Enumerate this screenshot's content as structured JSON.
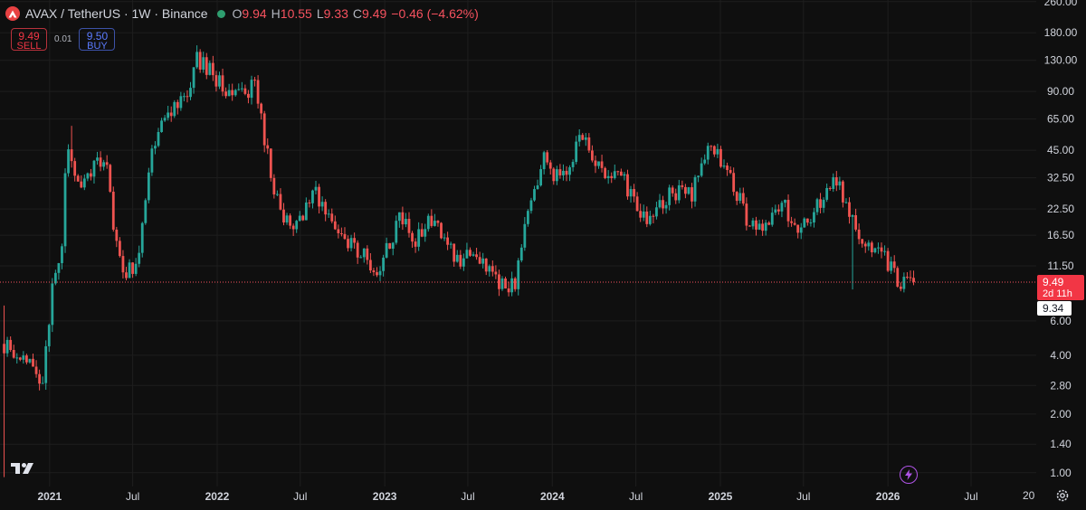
{
  "header": {
    "title": "AVAX / TetherUS · 1W · Binance",
    "open_label": "O",
    "open": "9.94",
    "high_label": "H",
    "high": "10.55",
    "low_label": "L",
    "low": "9.33",
    "close_label": "C",
    "close": "9.49",
    "change": "−0.46 (−4.62%)"
  },
  "trade": {
    "sell_price": "9.49",
    "sell_label": "SELL",
    "spread": "0.01",
    "buy_price": "9.50",
    "buy_label": "BUY"
  },
  "footer": {
    "timezone_label": "20"
  },
  "colors": {
    "up": "#26a69a",
    "down": "#ef5350",
    "background": "#0f0f0f",
    "grid": "#1e1e1e",
    "price_line": "#f7525f"
  },
  "icons": [
    "avax-logo-icon",
    "market-status-dot-icon",
    "tradingview-logo-icon",
    "lightning-icon",
    "gear-icon"
  ],
  "chart_data": {
    "type": "candlestick",
    "scale": "log",
    "ylim": [
      0.85,
      265
    ],
    "xlim": [
      "2020-09-15",
      "2026-11-20"
    ],
    "y_ticks": [
      "1.00",
      "1.40",
      "2.00",
      "2.80",
      "4.00",
      "6.00",
      "11.50",
      "16.50",
      "22.50",
      "32.50",
      "45.00",
      "65.00",
      "90.00",
      "130.00",
      "180.00",
      "260.00"
    ],
    "x_ticks": [
      {
        "date": "2021-01-01",
        "label": "2021"
      },
      {
        "date": "2021-07-01",
        "label": "Jul"
      },
      {
        "date": "2022-01-01",
        "label": "2022"
      },
      {
        "date": "2022-07-01",
        "label": "Jul"
      },
      {
        "date": "2023-01-01",
        "label": "2023"
      },
      {
        "date": "2023-07-01",
        "label": "Jul"
      },
      {
        "date": "2024-01-01",
        "label": "2024"
      },
      {
        "date": "2024-07-01",
        "label": "Jul"
      },
      {
        "date": "2025-01-01",
        "label": "2025"
      },
      {
        "date": "2025-07-01",
        "label": "Jul"
      },
      {
        "date": "2026-01-01",
        "label": "2026"
      },
      {
        "date": "2026-07-01",
        "label": "Jul"
      }
    ],
    "current_price": 9.49,
    "current_price_label": "9.49",
    "countdown_label": "2d 11h",
    "crosshair_price": 9.34,
    "crosshair_label": "9.34",
    "price_path": [
      [
        "2020-09-21",
        1.0
      ],
      [
        "2020-09-28",
        4.6
      ],
      [
        "2020-10-26",
        4.0
      ],
      [
        "2020-11-23",
        3.6
      ],
      [
        "2020-12-21",
        3.0
      ],
      [
        "2021-01-11",
        8.5
      ],
      [
        "2021-02-01",
        13.5
      ],
      [
        "2021-02-10",
        52.0
      ],
      [
        "2021-03-01",
        30.0
      ],
      [
        "2021-04-01",
        35.0
      ],
      [
        "2021-05-10",
        40.0
      ],
      [
        "2021-05-24",
        16.0
      ],
      [
        "2021-06-21",
        10.5
      ],
      [
        "2021-07-19",
        13.0
      ],
      [
        "2021-08-16",
        48.0
      ],
      [
        "2021-09-20",
        70.0
      ],
      [
        "2021-10-25",
        85.0
      ],
      [
        "2021-11-22",
        130.0
      ],
      [
        "2021-12-27",
        110.0
      ],
      [
        "2022-02-07",
        85.0
      ],
      [
        "2022-03-28",
        95.0
      ],
      [
        "2022-05-09",
        30.0
      ],
      [
        "2022-06-13",
        17.0
      ],
      [
        "2022-08-08",
        27.0
      ],
      [
        "2022-09-26",
        17.0
      ],
      [
        "2022-11-07",
        14.0
      ],
      [
        "2022-12-26",
        11.0
      ],
      [
        "2023-02-06",
        21.0
      ],
      [
        "2023-03-13",
        16.0
      ],
      [
        "2023-04-17",
        19.5
      ],
      [
        "2023-06-12",
        12.0
      ],
      [
        "2023-07-17",
        13.5
      ],
      [
        "2023-09-11",
        9.0
      ],
      [
        "2023-10-16",
        9.5
      ],
      [
        "2023-11-13",
        22.0
      ],
      [
        "2023-12-18",
        41.0
      ],
      [
        "2024-01-22",
        31.0
      ],
      [
        "2024-03-11",
        55.0
      ],
      [
        "2024-04-15",
        36.0
      ],
      [
        "2024-06-10",
        31.0
      ],
      [
        "2024-07-29",
        19.0
      ],
      [
        "2024-09-23",
        28.0
      ],
      [
        "2024-11-04",
        26.0
      ],
      [
        "2024-12-09",
        51.0
      ],
      [
        "2025-01-13",
        38.0
      ],
      [
        "2025-03-10",
        19.0
      ],
      [
        "2025-04-07",
        18.0
      ],
      [
        "2025-05-19",
        25.0
      ],
      [
        "2025-06-23",
        17.0
      ],
      [
        "2025-08-11",
        25.0
      ],
      [
        "2025-09-15",
        33.0
      ],
      [
        "2025-10-13",
        21.0
      ],
      [
        "2025-11-10",
        15.0
      ],
      [
        "2025-12-08",
        13.5
      ],
      [
        "2026-01-05",
        12.0
      ],
      [
        "2026-01-26",
        9.3
      ],
      [
        "2026-02-23",
        9.49
      ]
    ],
    "wick_events": [
      {
        "date": "2021-02-15",
        "high": 60.0
      },
      {
        "date": "2021-11-22",
        "high": 147.0
      },
      {
        "date": "2025-10-13",
        "low": 8.7
      },
      {
        "date": "2026-02-02",
        "low": 8.4
      }
    ]
  }
}
